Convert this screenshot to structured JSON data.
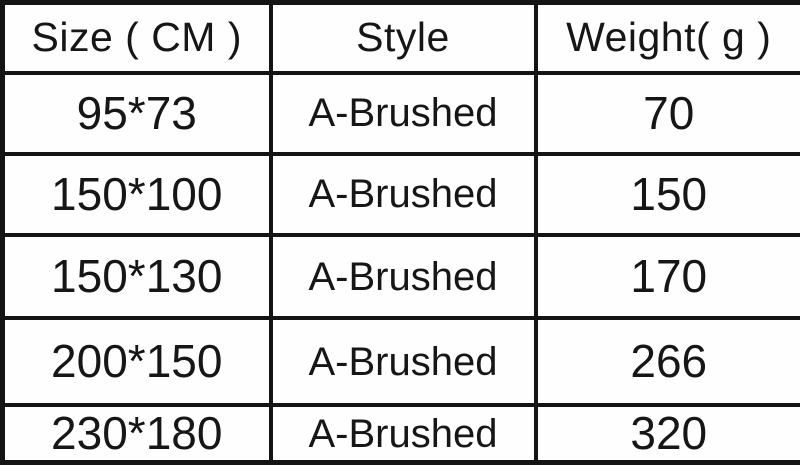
{
  "chart_data": {
    "type": "table",
    "title": "",
    "columns": [
      "Size ( CM )",
      "Style",
      "Weight( g )"
    ],
    "rows": [
      [
        "95*73",
        "A-Brushed",
        "70"
      ],
      [
        "150*100",
        "A-Brushed",
        "150"
      ],
      [
        "150*130",
        "A-Brushed",
        "170"
      ],
      [
        "200*150",
        "A-Brushed",
        "266"
      ],
      [
        "230*180",
        "A-Brushed",
        "320"
      ]
    ]
  },
  "colors": {
    "border": "#141414",
    "text": "#161616",
    "background": "#ffffff"
  }
}
